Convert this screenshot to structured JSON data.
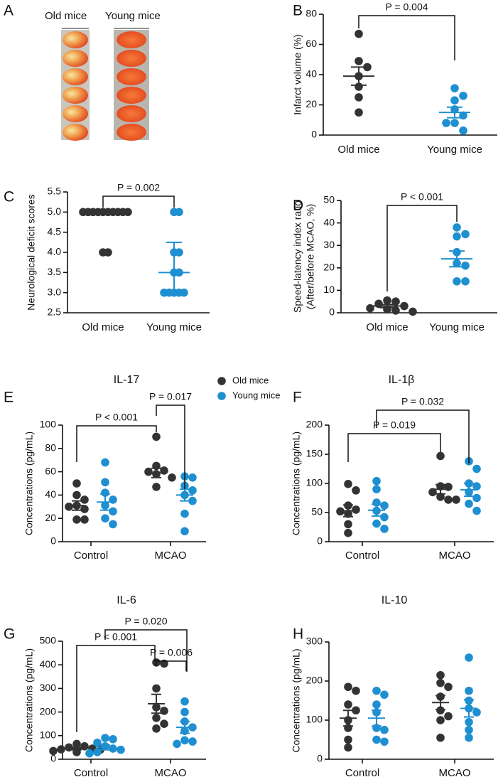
{
  "image_panel": {
    "panel": "A",
    "labels": [
      "Old mice",
      "Young mice"
    ]
  },
  "chart_data": [
    {
      "type": "dot",
      "panel": "B",
      "ylabel": "Infarct volume (%)",
      "categories": [
        "Old mice",
        "Young mice"
      ],
      "colors": [
        "#333333",
        "#1e8fd0"
      ],
      "points": [
        [
          67,
          49,
          45,
          39,
          32,
          25,
          15
        ],
        [
          31,
          26,
          23,
          17,
          13,
          8,
          8,
          3
        ]
      ],
      "center": [
        39,
        15
      ],
      "upper": [
        45,
        18.5
      ],
      "lower": [
        33,
        11.5
      ],
      "ylim": [
        0,
        80
      ],
      "yticks": [
        0,
        20,
        40,
        60,
        80
      ],
      "annotations": [
        "P = 0.004"
      ]
    },
    {
      "type": "dot",
      "panel": "C",
      "ylabel": "Neurological deficit scores",
      "categories": [
        "Old mice",
        "Young mice"
      ],
      "colors": [
        "#333333",
        "#1e8fd0"
      ],
      "points": [
        [
          5,
          5,
          5,
          5,
          5,
          5,
          5,
          5,
          5,
          5,
          4,
          4
        ],
        [
          5,
          5,
          4,
          4,
          3.5,
          3.5,
          3,
          3,
          3,
          3,
          3
        ]
      ],
      "center": [
        5,
        3.5
      ],
      "upper": [
        5,
        4.25
      ],
      "lower": [
        5,
        3
      ],
      "ylim": [
        2.5,
        5.5
      ],
      "yticks": [
        2.5,
        {
          "value": 3,
          "label": "3.0"
        },
        3.5,
        {
          "value": 4,
          "label": "4.0"
        },
        4.5,
        {
          "value": 5,
          "label": "5.0"
        },
        5.5
      ],
      "annotations": [
        "P = 0.002"
      ]
    },
    {
      "type": "dot",
      "panel": "D",
      "ylabel": [
        "Speed-latency index ratio",
        "(After/before MCAO, %)"
      ],
      "categories": [
        "Old mice",
        "Young mice"
      ],
      "colors": [
        "#333333",
        "#1e8fd0"
      ],
      "points": [
        [
          5.5,
          5,
          4,
          3,
          2,
          1.5,
          1,
          0.5
        ],
        [
          38,
          35,
          34,
          27,
          22,
          21,
          14,
          14
        ]
      ],
      "center": [
        3,
        24
      ],
      "upper": [
        3.7,
        27.5
      ],
      "lower": [
        2.3,
        20.5
      ],
      "ylim": [
        0,
        50
      ],
      "yticks": [
        0,
        10,
        20,
        30,
        40,
        50
      ],
      "annotations": [
        "P < 0.001"
      ]
    },
    {
      "type": "grouped_dot",
      "panel": "E",
      "title": "IL-17",
      "ylabel": "Concentrations (pg/mL)",
      "categories": [
        "Control",
        "MCAO"
      ],
      "series": [
        {
          "name": "Old mice",
          "color": "#333333",
          "points": [
            [
              50,
              40,
              36,
              31,
              30,
              28,
              19,
              19
            ],
            [
              90,
              65,
              61,
              60,
              58,
              55,
              47
            ]
          ],
          "center": [
            31,
            59
          ],
          "upper": [
            35,
            63
          ],
          "lower": [
            27,
            55
          ]
        },
        {
          "name": "Young mice",
          "color": "#1e8fd0",
          "points": [
            [
              68,
              51,
              42,
              36,
              31,
              26,
              20,
              15
            ],
            [
              56,
              55,
              48,
              44,
              40,
              35,
              24,
              9
            ]
          ],
          "center": [
            34,
            40
          ],
          "upper": [
            41,
            45
          ],
          "lower": [
            27,
            35
          ]
        }
      ],
      "ylim": [
        0,
        100
      ],
      "yticks": [
        0,
        20,
        40,
        60,
        80,
        100
      ],
      "annotations": [
        "P < 0.001",
        "P = 0.017"
      ]
    },
    {
      "type": "grouped_dot",
      "panel": "F",
      "title": "IL-1β",
      "ylabel": "Concentrations (pg/mL)",
      "categories": [
        "Control",
        "MCAO"
      ],
      "series": [
        {
          "color": "#333333",
          "points": [
            [
              99,
              88,
              62,
              55,
              52,
              48,
              30,
              15
            ],
            [
              147,
              95,
              94,
              85,
              77,
              72,
              72
            ]
          ],
          "center": [
            53,
            90
          ],
          "upper": [
            63,
            98
          ],
          "lower": [
            43,
            82
          ]
        },
        {
          "color": "#1e8fd0",
          "points": [
            [
              104,
              90,
              67,
              62,
              53,
              42,
              31,
              22
            ],
            [
              138,
              125,
              100,
              95,
              85,
              75,
              65,
              53
            ]
          ],
          "center": [
            54,
            89
          ],
          "upper": [
            64,
            100
          ],
          "lower": [
            44,
            78
          ]
        }
      ],
      "ylim": [
        0,
        200
      ],
      "yticks": [
        0,
        50,
        100,
        150,
        200
      ],
      "annotations": [
        "P = 0.019",
        "P = 0.032"
      ]
    },
    {
      "type": "grouped_dot",
      "panel": "G",
      "title": "IL-6",
      "ylabel": "Concentrations (pg/mL)",
      "categories": [
        "Control",
        "MCAO"
      ],
      "series": [
        {
          "color": "#333333",
          "points": [
            [
              65,
              55,
              50,
              45,
              42,
              40,
              35,
              30
            ],
            [
              410,
              405,
              300,
              220,
              205,
              175,
              150,
              130
            ]
          ],
          "center": [
            45,
            235
          ],
          "upper": [
            50,
            275
          ],
          "lower": [
            40,
            195
          ]
        },
        {
          "color": "#1e8fd0",
          "points": [
            [
              90,
              85,
              70,
              55,
              45,
              40,
              30,
              25
            ],
            [
              245,
              200,
              160,
              135,
              120,
              80,
              75,
              65
            ]
          ],
          "center": [
            50,
            135
          ],
          "upper": [
            60,
            160
          ],
          "lower": [
            40,
            110
          ]
        }
      ],
      "ylim": [
        0,
        500
      ],
      "yticks": [
        0,
        100,
        200,
        300,
        400,
        500
      ],
      "annotations": [
        "P = 0.020",
        "P < 0.001",
        "P = 0.006"
      ]
    },
    {
      "type": "grouped_dot",
      "panel": "H",
      "title": "IL-10",
      "ylabel": "Concentrations (pg/mL)",
      "categories": [
        "Control",
        "MCAO"
      ],
      "series": [
        {
          "color": "#333333",
          "points": [
            [
              185,
              175,
              140,
              125,
              100,
              80,
              50,
              30
            ],
            [
              215,
              195,
              185,
              160,
              125,
              110,
              100,
              55
            ]
          ],
          "center": [
            105,
            145
          ],
          "upper": [
            125,
            163
          ],
          "lower": [
            85,
            127
          ]
        },
        {
          "color": "#1e8fd0",
          "points": [
            [
              175,
              165,
              140,
              120,
              80,
              75,
              50,
              45
            ],
            [
              260,
              175,
              150,
              130,
              120,
              95,
              75,
              55
            ]
          ],
          "center": [
            105,
            130
          ],
          "upper": [
            125,
            152
          ],
          "lower": [
            85,
            108
          ]
        }
      ],
      "ylim": [
        0,
        300
      ],
      "yticks": [
        0,
        100,
        200,
        300
      ],
      "annotations": []
    }
  ]
}
